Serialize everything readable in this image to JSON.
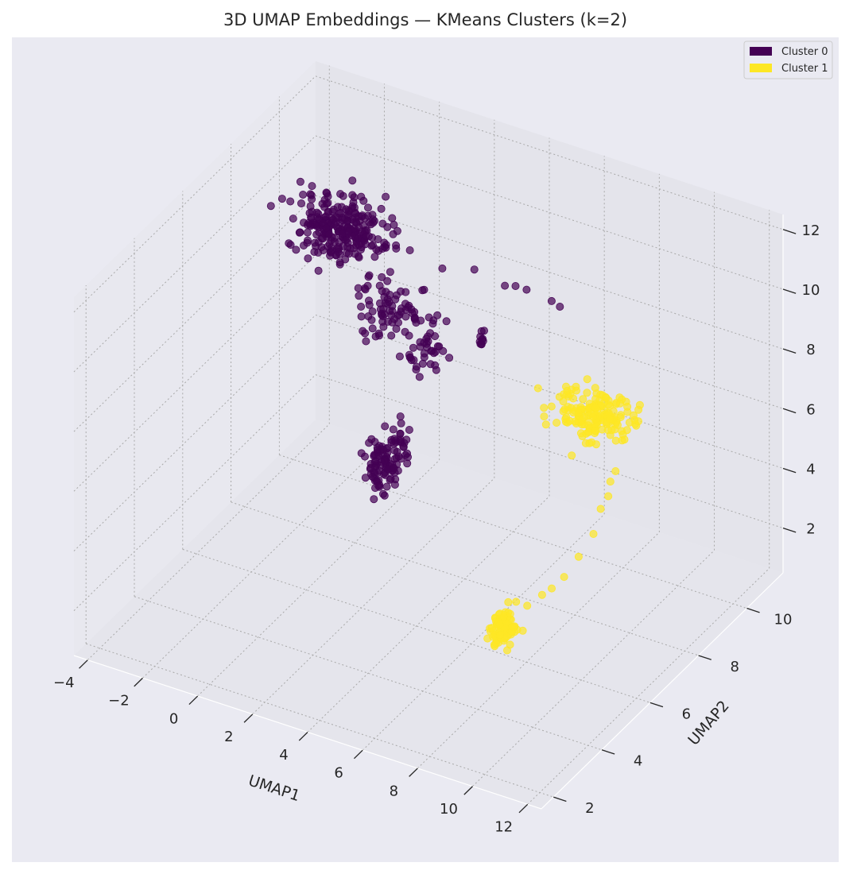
{
  "chart_data": {
    "type": "scatter",
    "projection": "3d",
    "title": "3D UMAP Embeddings — KMeans Clusters (k=2)",
    "xlabel": "UMAP1",
    "ylabel": "UMAP2",
    "zlabel": "",
    "xlim": [
      -4.5,
      12.5
    ],
    "ylim": [
      1.5,
      11.5
    ],
    "zlim": [
      0.5,
      12.5
    ],
    "x_ticks": [
      "−4",
      "−2",
      "0",
      "2",
      "4",
      "6",
      "8",
      "10",
      "12"
    ],
    "y_ticks": [
      "2",
      "4",
      "6",
      "8",
      "10"
    ],
    "z_ticks": [
      "2",
      "4",
      "6",
      "8",
      "10",
      "12"
    ],
    "grid": true,
    "legend_position": "top-right",
    "series": [
      {
        "name": "Cluster 0",
        "color": "#440154",
        "clusters": [
          {
            "center": [
              -1.9,
              9.6,
              9.2
            ],
            "spread": [
              1.4,
              0.7,
              0.6
            ],
            "count": 260
          },
          {
            "center": [
              0.6,
              9.0,
              7.6
            ],
            "spread": [
              1.0,
              0.6,
              0.6
            ],
            "count": 80
          },
          {
            "center": [
              1.8,
              7.2,
              4.4
            ],
            "spread": [
              0.45,
              0.5,
              0.9
            ],
            "count": 110
          },
          {
            "center": [
              1.4,
              9.4,
              6.1
            ],
            "spread": [
              0.6,
              0.5,
              0.5
            ],
            "count": 35
          },
          {
            "center": [
              2.1,
              10.9,
              5.7
            ],
            "spread": [
              0.1,
              0.1,
              0.3
            ],
            "count": 10
          }
        ],
        "line_points": [
          [
            0.9,
            10.6,
            7.9
          ],
          [
            1.8,
            10.9,
            7.9
          ],
          [
            3.0,
            10.8,
            7.8
          ],
          [
            3.3,
            10.9,
            7.8
          ],
          [
            3.7,
            10.9,
            7.8
          ],
          [
            4.7,
            10.8,
            7.8
          ],
          [
            5.0,
            10.8,
            7.7
          ],
          [
            1.4,
            10.2,
            6.6
          ]
        ]
      },
      {
        "name": "Cluster 1",
        "color": "#fde725",
        "clusters": [
          {
            "center": [
              8.7,
              8.0,
              7.4
            ],
            "spread": [
              1.1,
              0.5,
              0.5
            ],
            "count": 170
          },
          {
            "center": [
              9.6,
              3.2,
              4.4
            ],
            "spread": [
              0.3,
              0.35,
              0.4
            ],
            "count": 85
          }
        ],
        "line_points": [
          [
            9.7,
            4.1,
            4.4
          ],
          [
            9.8,
            4.6,
            4.4
          ],
          [
            9.8,
            5.0,
            4.3
          ],
          [
            9.9,
            5.4,
            4.4
          ],
          [
            9.9,
            6.0,
            4.6
          ],
          [
            10.0,
            6.5,
            5.0
          ],
          [
            10.0,
            6.8,
            5.6
          ],
          [
            10.1,
            7.0,
            5.9
          ],
          [
            10.0,
            7.2,
            6.2
          ],
          [
            10.1,
            7.3,
            6.5
          ]
        ]
      }
    ]
  }
}
